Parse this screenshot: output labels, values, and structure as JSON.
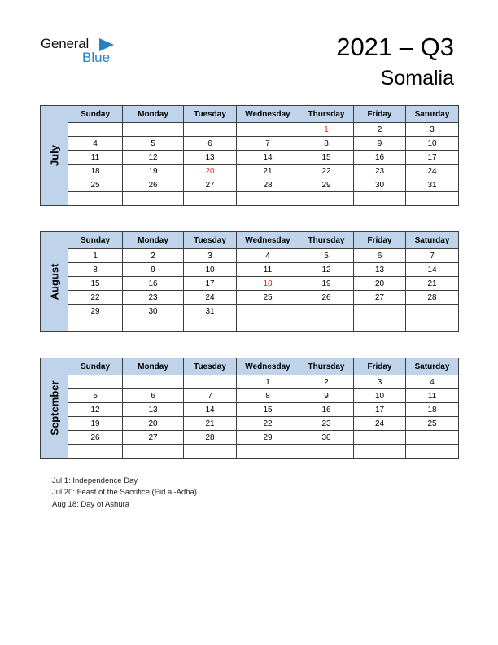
{
  "logo": {
    "text_general": "General",
    "text_blue": "Blue"
  },
  "title": "2021 – Q3",
  "country": "Somalia",
  "weekdays": [
    "Sunday",
    "Monday",
    "Tuesday",
    "Wednesday",
    "Thursday",
    "Friday",
    "Saturday"
  ],
  "months": [
    {
      "name": "July",
      "weeks": [
        [
          "",
          "",
          "",
          "",
          "1",
          "2",
          "3"
        ],
        [
          "4",
          "5",
          "6",
          "7",
          "8",
          "9",
          "10"
        ],
        [
          "11",
          "12",
          "13",
          "14",
          "15",
          "16",
          "17"
        ],
        [
          "18",
          "19",
          "20",
          "21",
          "22",
          "23",
          "24"
        ],
        [
          "25",
          "26",
          "27",
          "28",
          "29",
          "30",
          "31"
        ],
        [
          "",
          "",
          "",
          "",
          "",
          "",
          ""
        ]
      ],
      "holidays": [
        "1",
        "20"
      ]
    },
    {
      "name": "August",
      "weeks": [
        [
          "1",
          "2",
          "3",
          "4",
          "5",
          "6",
          "7"
        ],
        [
          "8",
          "9",
          "10",
          "11",
          "12",
          "13",
          "14"
        ],
        [
          "15",
          "16",
          "17",
          "18",
          "19",
          "20",
          "21"
        ],
        [
          "22",
          "23",
          "24",
          "25",
          "26",
          "27",
          "28"
        ],
        [
          "29",
          "30",
          "31",
          "",
          "",
          "",
          ""
        ],
        [
          "",
          "",
          "",
          "",
          "",
          "",
          ""
        ]
      ],
      "holidays": [
        "18"
      ]
    },
    {
      "name": "September",
      "weeks": [
        [
          "",
          "",
          "",
          "1",
          "2",
          "3",
          "4"
        ],
        [
          "5",
          "6",
          "7",
          "8",
          "9",
          "10",
          "11"
        ],
        [
          "12",
          "13",
          "14",
          "15",
          "16",
          "17",
          "18"
        ],
        [
          "19",
          "20",
          "21",
          "22",
          "23",
          "24",
          "25"
        ],
        [
          "26",
          "27",
          "28",
          "29",
          "30",
          "",
          ""
        ],
        [
          "",
          "",
          "",
          "",
          "",
          "",
          ""
        ]
      ],
      "holidays": []
    }
  ],
  "notes": [
    "Jul 1: Independence Day",
    "Jul 20: Feast of the Sacrifice (Eid al-Adha)",
    "Aug 18: Day of Ashura"
  ],
  "colors": {
    "header_fill": "#bfd3ea",
    "holiday": "#e02020",
    "logo_blue": "#2a7fc1"
  }
}
